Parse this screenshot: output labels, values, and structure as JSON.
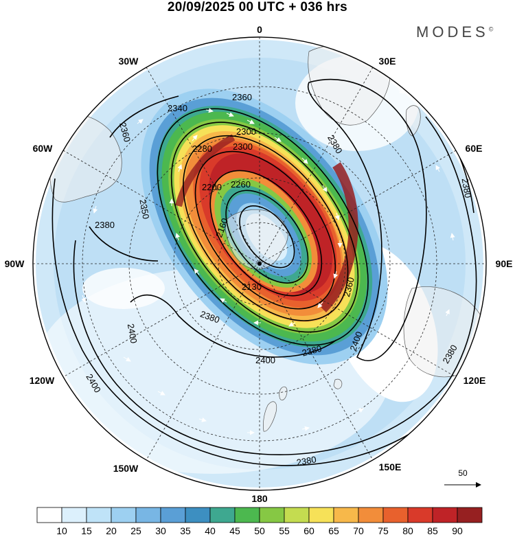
{
  "title": "20/09/2025  00 UTC  + 036 hrs",
  "brand": "MODES",
  "brand_mark": "©",
  "longitude_labels": [
    "0",
    "30E",
    "60E",
    "90E",
    "120E",
    "150E",
    "180",
    "150W",
    "120W",
    "90W",
    "60W",
    "30W"
  ],
  "contour_labels": [
    "2130",
    "2160",
    "2200",
    "2260",
    "2280",
    "2300",
    "2300",
    "2340",
    "2350",
    "2360",
    "2360",
    "2360",
    "2380",
    "2380",
    "2380",
    "2380",
    "2380",
    "2380",
    "2380",
    "2400",
    "2400",
    "2400",
    "2400"
  ],
  "vector_reference": "50",
  "colorbar": {
    "ticks": [
      "10",
      "15",
      "20",
      "25",
      "30",
      "35",
      "40",
      "45",
      "50",
      "55",
      "60",
      "65",
      "70",
      "75",
      "80",
      "85",
      "90"
    ],
    "colors": [
      "#ffffff",
      "#dcf0fc",
      "#bfe3f8",
      "#9dd0f1",
      "#78b6e4",
      "#5a9fd6",
      "#3d8fc1",
      "#3ea890",
      "#4cb84f",
      "#86c844",
      "#c4dc50",
      "#f6e158",
      "#f7b84a",
      "#f28d3a",
      "#e8612d",
      "#d93a2a",
      "#bf2327",
      "#962021"
    ]
  }
}
